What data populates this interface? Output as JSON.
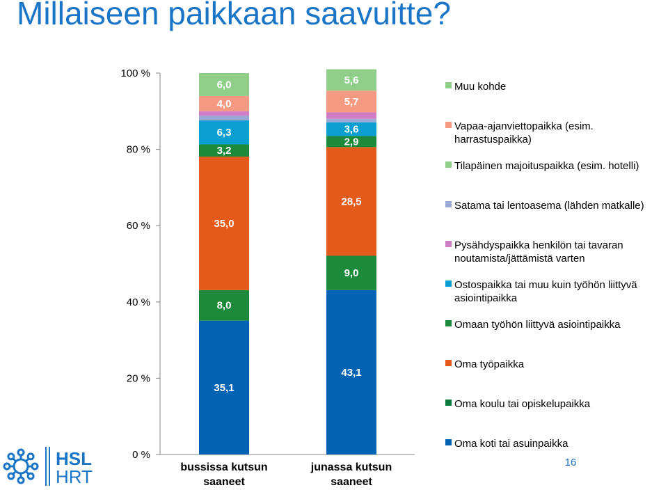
{
  "title": "Millaiseen paikkaan saavuitte?",
  "page_number": "16",
  "logo": {
    "line1": "HSL",
    "line2": "HRT",
    "color": "#1a75c7"
  },
  "chart_data": {
    "type": "bar",
    "stacked": true,
    "categories": [
      "bussissa kutsun saaneet",
      "junassa kutsun saaneet"
    ],
    "category_label_lines": [
      [
        "bussissa kutsun",
        "saaneet"
      ],
      [
        "junassa kutsun",
        "saaneet"
      ]
    ],
    "ylim": [
      0,
      100
    ],
    "yticks": [
      0,
      20,
      40,
      60,
      80,
      100
    ],
    "ytick_labels": [
      "0 %",
      "20 %",
      "40 %",
      "60 %",
      "80 %",
      "100 %"
    ],
    "legend_position": "right",
    "series": [
      {
        "name": "Oma koti tai asuinpaikka",
        "name_lines": [
          "Oma koti tai asuinpaikka"
        ],
        "color": "#0563b4",
        "values": [
          35.1,
          43.1
        ],
        "labels": [
          "35,1",
          "43,1"
        ]
      },
      {
        "name": "Oma koulu tai opiskelupaikka",
        "name_lines": [
          "Oma koulu tai opiskelupaikka"
        ],
        "color": "#0d7a3e",
        "values": [
          0,
          0
        ],
        "labels": [
          "",
          ""
        ]
      },
      {
        "name": "Oma työpaikka",
        "name_lines": [
          "Oma työpaikka"
        ],
        "color": "#e35a1a",
        "values": [
          0,
          0
        ],
        "labels": [
          "",
          ""
        ]
      },
      {
        "name": "Omaan työhön liittyvä asiointipaikka",
        "name_lines": [
          "Omaan työhön liittyvä asiointipaikka"
        ],
        "color": "#1c8a3a",
        "values": [
          8.0,
          9.0
        ],
        "labels": [
          "8,0",
          "9,0"
        ]
      },
      {
        "name": "Ostospaikka tai muu kuin työhön liittyvä asiointipaikka",
        "name_lines": [
          "Ostospaikka tai muu kuin työhön liittyvä",
          "asiointipaikka"
        ],
        "color": "#e35a1a",
        "values": [
          35.0,
          28.5
        ],
        "labels": [
          "35,0",
          "28,5"
        ]
      },
      {
        "name": "Pysähdyspaikka henkilön tai tavaran noutamista/jättämistä varten",
        "name_lines": [
          "Pysähdyspaikka henkilön tai tavaran",
          "noutamista/jättämistä varten"
        ],
        "color": "#1c8a3a",
        "values": [
          3.2,
          2.9
        ],
        "labels": [
          "3,2",
          "2,9"
        ]
      },
      {
        "name": "Satama tai lentoasema (lähden matkalle)",
        "name_lines": [
          "Satama tai lentoasema (lähden matkalle)"
        ],
        "color": "#0b9fd0",
        "values": [
          6.3,
          3.6
        ],
        "labels": [
          "6,3",
          "3,6"
        ]
      },
      {
        "name": "Tilapäinen majoituspaikka (esim. hotelli)",
        "name_lines": [
          "Tilapäinen majoituspaikka (esim. hotelli)"
        ],
        "color": "#9aa8d6",
        "values": [
          1.2,
          0.9
        ],
        "labels": [
          "",
          ""
        ]
      },
      {
        "name": "Vapaa-ajanviettopaikka (esim. harrastuspaikka)",
        "name_lines": [
          "Vapaa-ajanviettopaikka (esim.",
          "harrastuspaikka)"
        ],
        "color": "#cf7dc4",
        "values": [
          1.2,
          1.7
        ],
        "labels": [
          "",
          ""
        ]
      },
      {
        "name": "Vapaa-ajanviettopaikka (esim. harrastuspaikka)",
        "name_lines": [],
        "color": "#f59a82",
        "values": [
          4.0,
          5.7
        ],
        "labels": [
          "4,0",
          "5,7"
        ]
      },
      {
        "name": "Muu kohde",
        "name_lines": [
          "Muu kohde"
        ],
        "color": "#8fcf8a",
        "values": [
          6.0,
          5.6
        ],
        "labels": [
          "6,0",
          "5,6"
        ]
      }
    ],
    "legend": [
      {
        "label_lines": [
          "Muu kohde"
        ],
        "color": "#8fcf8a"
      },
      {
        "label_lines": [
          "Vapaa-ajanviettopaikka (esim.",
          "harrastuspaikka)"
        ],
        "color": "#f59a82"
      },
      {
        "label_lines": [
          "Tilapäinen majoituspaikka (esim. hotelli)"
        ],
        "color": "#8fcf8a"
      },
      {
        "label_lines": [
          "Satama tai lentoasema (lähden matkalle)"
        ],
        "color": "#9aa8d6"
      },
      {
        "label_lines": [
          "Pysähdyspaikka henkilön tai tavaran",
          "noutamista/jättämistä varten"
        ],
        "color": "#cf7dc4"
      },
      {
        "label_lines": [
          "Ostospaikka tai muu kuin työhön liittyvä",
          "asiointipaikka"
        ],
        "color": "#0b9fd0"
      },
      {
        "label_lines": [
          "Omaan työhön liittyvä asiointipaikka"
        ],
        "color": "#1c8a3a"
      },
      {
        "label_lines": [
          "Oma työpaikka"
        ],
        "color": "#e35a1a"
      },
      {
        "label_lines": [
          "Oma koulu tai opiskelupaikka"
        ],
        "color": "#0d7a3e"
      },
      {
        "label_lines": [
          "Oma koti tai asuinpaikka"
        ],
        "color": "#0563b4"
      }
    ]
  }
}
